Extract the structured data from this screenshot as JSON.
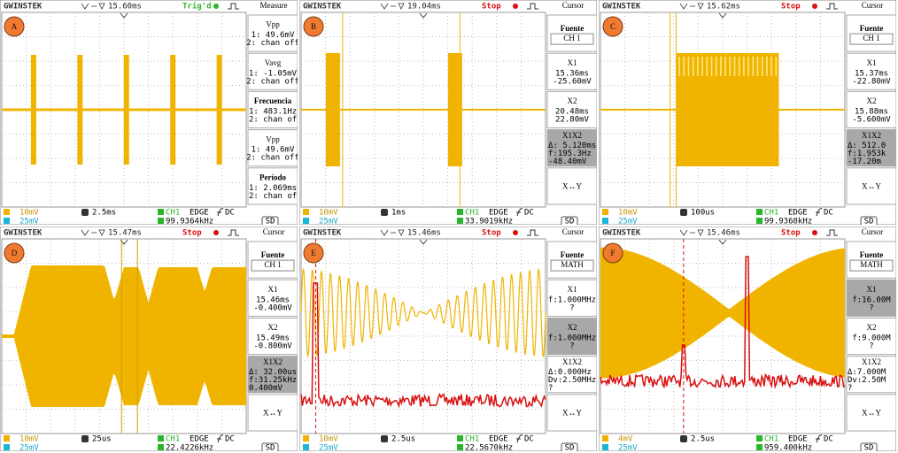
{
  "panels": [
    {
      "label": "A",
      "brand": "GWINSTEK",
      "trigger_time": "15.60ms",
      "status": "Trig'd",
      "menu_title": "Measure",
      "menu": [
        {
          "title": "Vpp",
          "lines": [
            "1: 49.6mV",
            "2: chan off"
          ]
        },
        {
          "title": "Vavg",
          "lines": [
            "1: -1.05mV",
            "2: chan off"
          ]
        },
        {
          "title": "Frecuencia",
          "bold": true,
          "lines": [
            "1: 483.1Hz",
            "2: chan off"
          ]
        },
        {
          "title": "Vpp",
          "lines": [
            "1: 49.6mV",
            "2: chan off"
          ]
        },
        {
          "title": "Período",
          "bold": true,
          "lines": [
            "1: 2.069ms",
            "2: chan off"
          ]
        }
      ],
      "ch1_scale": "10mV",
      "ch2_scale": "25mV",
      "timebase": "2.5ms",
      "trigger_source": "CH1",
      "trigger_type": "EDGE",
      "coupling": "DC",
      "frequency": "99.9364kHz",
      "storage": "SD"
    },
    {
      "label": "B",
      "brand": "GWINSTEK",
      "trigger_time": "19.04ms",
      "status": "Stop",
      "menu_title": "Cursor",
      "menu": [
        {
          "title": "Fuente",
          "bold": true,
          "lines": [
            "CH 1"
          ]
        },
        {
          "title": "X1",
          "lines": [
            "15.36ms",
            "-25.60mV"
          ]
        },
        {
          "title": "X2",
          "lines": [
            "20.48ms",
            "22.80mV"
          ]
        },
        {
          "title": "X1X2",
          "highlight": true,
          "lines": [
            "Δ: 5.120ms",
            "f:195.3Hz",
            "-48.40mV"
          ]
        },
        {
          "title": "X↔Y",
          "lines": []
        }
      ],
      "ch1_scale": "10mV",
      "ch2_scale": "25mV",
      "timebase": "1ms",
      "trigger_source": "CH1",
      "trigger_type": "EDGE",
      "coupling": "DC",
      "frequency": "33.9019kHz",
      "storage": "SD"
    },
    {
      "label": "C",
      "brand": "GWINSTEK",
      "trigger_time": "15.62ms",
      "status": "Stop",
      "menu_title": "Cursor",
      "menu": [
        {
          "title": "Fuente",
          "bold": true,
          "lines": [
            "CH 1"
          ]
        },
        {
          "title": "X1",
          "lines": [
            "15.37ms",
            "-22.80mV"
          ]
        },
        {
          "title": "X2",
          "lines": [
            "15.88ms",
            "-5.600mV"
          ]
        },
        {
          "title": "X1X2",
          "highlight": true,
          "lines": [
            "Δ: 512.0",
            "f:1.953k",
            "-17.20m"
          ]
        },
        {
          "title": "X↔Y",
          "lines": []
        }
      ],
      "ch1_scale": "10mV",
      "ch2_scale": "25mV",
      "timebase": "100us",
      "trigger_source": "CH1",
      "trigger_type": "EDGE",
      "coupling": "DC",
      "frequency": "99.9368kHz",
      "storage": "SD"
    },
    {
      "label": "D",
      "brand": "GWINSTEK",
      "trigger_time": "15.47ms",
      "status": "Stop",
      "menu_title": "Cursor",
      "menu": [
        {
          "title": "Fuente",
          "bold": true,
          "lines": [
            "CH 1"
          ]
        },
        {
          "title": "X1",
          "lines": [
            "15.46ms",
            "-0.400mV"
          ]
        },
        {
          "title": "X2",
          "lines": [
            "15.49ms",
            "-0.800mV"
          ]
        },
        {
          "title": "X1X2",
          "highlight": true,
          "lines": [
            "Δ: 32.00us",
            "f:31.25kHz",
            "0.400mV"
          ]
        },
        {
          "title": "X↔Y",
          "lines": []
        }
      ],
      "ch1_scale": "10mV",
      "ch2_scale": "25mV",
      "timebase": "25us",
      "trigger_source": "CH1",
      "trigger_type": "EDGE",
      "coupling": "DC",
      "frequency": "22.4226kHz",
      "storage": "SD"
    },
    {
      "label": "E",
      "brand": "GWINSTEK",
      "trigger_time": "15.46ms",
      "status": "Stop",
      "menu_title": "Cursor",
      "menu": [
        {
          "title": "Fuente",
          "bold": true,
          "lines": [
            "MATH"
          ]
        },
        {
          "title": "X1",
          "lines": [
            "f:1.000MHz",
            "?"
          ]
        },
        {
          "title": "X2",
          "highlight": true,
          "lines": [
            "f:1.000MHz",
            "?"
          ]
        },
        {
          "title": "X1X2",
          "lines": [
            "Δ:0.000Hz",
            "Dv:2.50MHz",
            "?"
          ]
        },
        {
          "title": "X↔Y",
          "lines": []
        }
      ],
      "ch1_scale": "10mV",
      "ch2_scale": "25mV",
      "timebase": "2.5us",
      "trigger_source": "CH1",
      "trigger_type": "EDGE",
      "coupling": "DC",
      "frequency": "22.5670kHz",
      "storage": "SD"
    },
    {
      "label": "F",
      "brand": "GWINSTEK",
      "trigger_time": "15.46ms",
      "status": "Stop",
      "menu_title": "Cursor",
      "menu": [
        {
          "title": "Fuente",
          "bold": true,
          "lines": [
            "MATH"
          ]
        },
        {
          "title": "X1",
          "highlight": true,
          "lines": [
            "f:16.00M",
            "?"
          ]
        },
        {
          "title": "X2",
          "lines": [
            "f:9.000M",
            "?"
          ]
        },
        {
          "title": "X1X2",
          "lines": [
            "Δ:7.000M",
            "Dv:2.50M",
            "?"
          ]
        },
        {
          "title": "X↔Y",
          "lines": []
        }
      ],
      "ch1_scale": "4mV",
      "ch2_scale": "25mV",
      "timebase": "2.5us",
      "trigger_source": "CH1",
      "trigger_type": "EDGE",
      "coupling": "DC",
      "frequency": "959.400kHz",
      "storage": "SD"
    }
  ]
}
